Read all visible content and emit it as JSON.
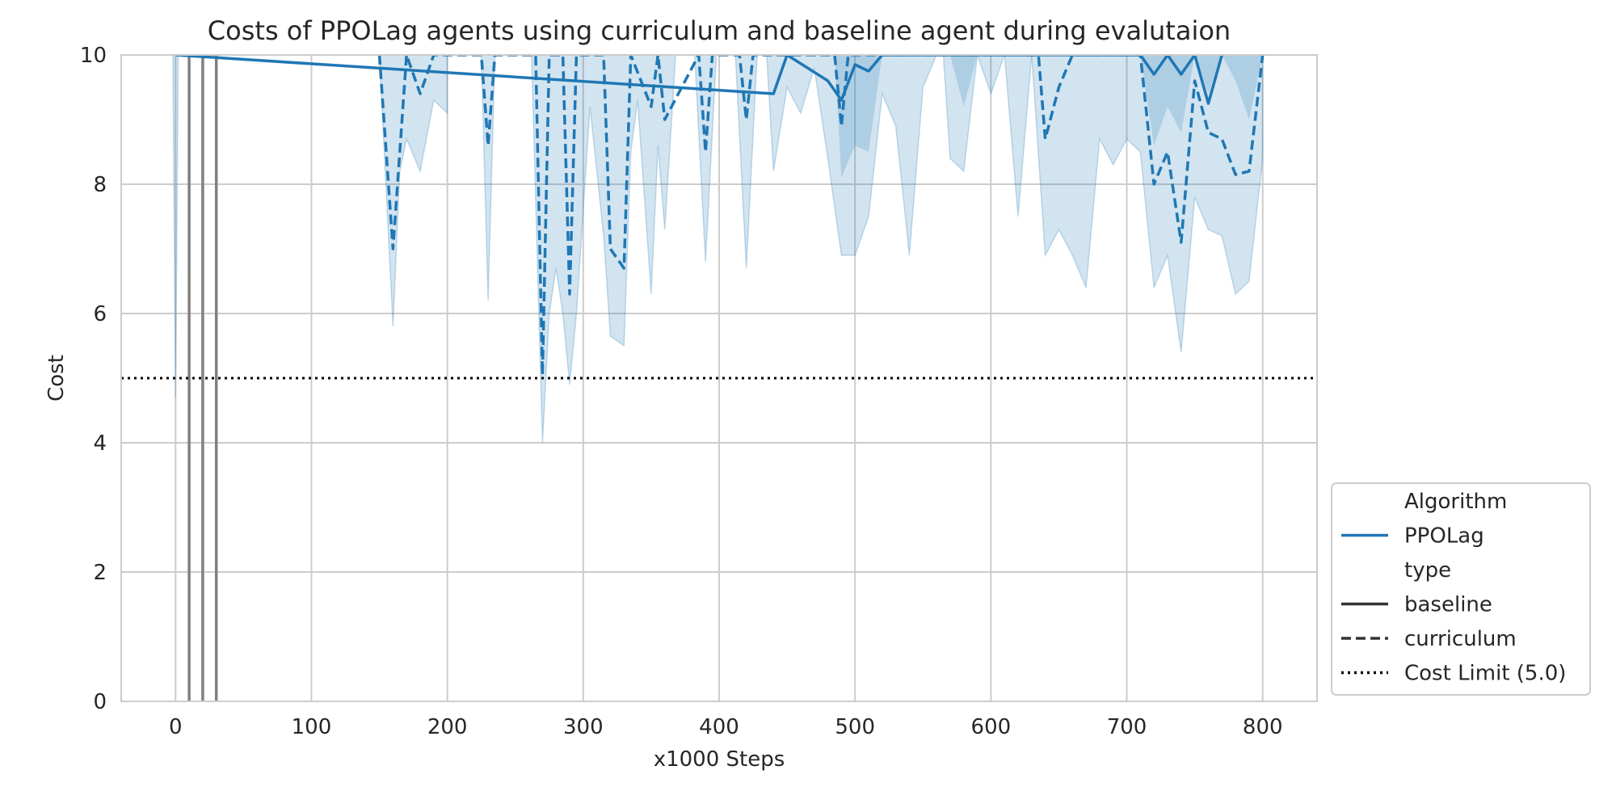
{
  "chart_data": {
    "type": "line",
    "title": "Costs of PPOLag agents using curriculum and baseline agent during evalutaion",
    "xlabel": "x1000 Steps",
    "ylabel": "Cost",
    "xlim": [
      -40,
      840
    ],
    "ylim": [
      0,
      10
    ],
    "xticks": [
      0,
      100,
      200,
      300,
      400,
      500,
      600,
      700,
      800
    ],
    "yticks": [
      0,
      2,
      4,
      6,
      8,
      10
    ],
    "grid": true,
    "colors": {
      "series": "#1f77b4",
      "band": "#1f77b4",
      "limit": "#000000",
      "vlines": "#808080"
    },
    "cost_limit": 5.0,
    "vertical_lines_x": [
      10,
      20,
      30
    ],
    "legend": {
      "placement": "outside-right-bottom",
      "entries": [
        {
          "label": "Algorithm",
          "style": "header"
        },
        {
          "label": "PPOLag",
          "style": "solid",
          "color": "#1f77b4"
        },
        {
          "label": "type",
          "style": "header"
        },
        {
          "label": "baseline",
          "style": "solid",
          "color": "#333333"
        },
        {
          "label": "curriculum",
          "style": "dashed",
          "color": "#333333"
        },
        {
          "label": "Cost Limit (5.0)",
          "style": "dotted",
          "color": "#000000"
        }
      ]
    },
    "series": [
      {
        "name": "baseline",
        "linestyle": "solid",
        "x": [
          0,
          440,
          450,
          480,
          490,
          500,
          510,
          520,
          710,
          720,
          730,
          740,
          750,
          760,
          770
        ],
        "y": [
          10,
          9.4,
          10,
          9.6,
          9.3,
          9.85,
          9.75,
          10,
          10,
          9.7,
          10,
          9.7,
          10,
          9.25,
          10
        ]
      },
      {
        "name": "curriculum",
        "linestyle": "dashed",
        "x": [
          150,
          160,
          170,
          180,
          190,
          225,
          230,
          235,
          265,
          270,
          275,
          280,
          285,
          290,
          295,
          315,
          320,
          330,
          335,
          350,
          355,
          360,
          385,
          390,
          395,
          415,
          420,
          425,
          485,
          490,
          495,
          635,
          640,
          650,
          660,
          710,
          720,
          730,
          740,
          750,
          760,
          770,
          780,
          790,
          800
        ],
        "y": [
          10,
          7.0,
          10,
          9.4,
          10,
          10,
          8.6,
          10,
          10,
          5.05,
          10,
          10,
          10,
          6.3,
          10,
          10,
          7.0,
          6.7,
          10,
          9.2,
          10,
          9.0,
          10,
          8.5,
          10,
          10,
          9.0,
          10,
          10,
          8.9,
          10,
          10,
          8.7,
          9.5,
          10,
          10,
          8.0,
          8.5,
          7.1,
          9.6,
          8.8,
          8.7,
          8.15,
          8.2,
          10
        ]
      }
    ],
    "confidence_bands": [
      {
        "x": [
          -2,
          0,
          2
        ],
        "lower": [
          10,
          4.7,
          10
        ],
        "upper": [
          10,
          10,
          10
        ]
      },
      {
        "x": [
          150,
          160,
          165,
          170,
          180,
          190,
          200
        ],
        "lower": [
          10,
          5.8,
          8.2,
          8.7,
          8.2,
          9.3,
          9.1
        ],
        "upper": [
          10,
          10,
          10,
          10,
          10,
          10,
          10
        ]
      },
      {
        "x": [
          225,
          230,
          235
        ],
        "lower": [
          10,
          6.2,
          10
        ],
        "upper": [
          10,
          10,
          10
        ]
      },
      {
        "x": [
          262,
          270,
          275,
          280,
          285,
          290,
          295,
          305,
          315,
          320,
          330,
          335,
          340,
          350,
          355,
          360,
          368
        ],
        "lower": [
          10,
          4.0,
          6.0,
          6.7,
          6.0,
          4.9,
          6.0,
          9.2,
          7.2,
          5.65,
          5.5,
          8.5,
          9.3,
          6.3,
          8.6,
          7.3,
          10
        ],
        "upper": [
          10,
          10,
          10,
          10,
          10,
          10,
          10,
          10,
          10,
          10,
          10,
          10,
          10,
          10,
          10,
          10,
          10
        ]
      },
      {
        "x": [
          382,
          390,
          398
        ],
        "lower": [
          10,
          6.8,
          10
        ],
        "upper": [
          10,
          10,
          10
        ]
      },
      {
        "x": [
          412,
          420,
          428
        ],
        "lower": [
          10,
          6.7,
          10
        ],
        "upper": [
          10,
          10,
          10
        ]
      },
      {
        "x": [
          435,
          440,
          450,
          460,
          470,
          480,
          490,
          500,
          510,
          520,
          530,
          540,
          550,
          560
        ],
        "lower": [
          10,
          8.2,
          9.5,
          9.1,
          9.8,
          8.4,
          6.9,
          6.9,
          7.5,
          9.4,
          8.9,
          6.9,
          9.5,
          10
        ],
        "upper": [
          10,
          10,
          10,
          10,
          10,
          10,
          10,
          10,
          10,
          10,
          10,
          10,
          10,
          10
        ]
      },
      {
        "x": [
          565,
          570,
          580,
          590,
          600,
          610,
          620,
          630
        ],
        "lower": [
          10,
          8.4,
          8.2,
          10,
          9.4,
          10,
          7.5,
          10
        ],
        "upper": [
          10,
          10,
          10,
          10,
          10,
          10,
          10,
          10
        ]
      },
      {
        "x": [
          630,
          640,
          650,
          660,
          670,
          680,
          690,
          700,
          710,
          720,
          730,
          740,
          750,
          760,
          770,
          780,
          790,
          800
        ],
        "lower": [
          10,
          6.9,
          7.3,
          6.9,
          6.4,
          8.7,
          8.3,
          8.7,
          8.5,
          6.4,
          6.9,
          5.4,
          7.8,
          7.3,
          7.2,
          6.3,
          6.5,
          8.4
        ],
        "upper": [
          10,
          10,
          10,
          10,
          10,
          10,
          10,
          10,
          10,
          10,
          10,
          10,
          10,
          10,
          10,
          10,
          10,
          10
        ]
      }
    ],
    "dark_bands": [
      {
        "x": [
          485,
          490,
          500,
          510,
          520
        ],
        "lower": [
          10,
          8.1,
          8.6,
          8.5,
          10
        ],
        "upper": [
          10,
          10,
          10,
          10,
          10
        ]
      },
      {
        "x": [
          570,
          580,
          590
        ],
        "lower": [
          10,
          9.2,
          10
        ],
        "upper": [
          10,
          10,
          10
        ]
      },
      {
        "x": [
          710,
          720,
          730,
          740,
          750,
          760,
          770,
          780,
          790,
          800
        ],
        "lower": [
          10,
          8.6,
          9.2,
          8.8,
          10,
          9.4,
          10,
          9.6,
          9.0,
          10
        ],
        "upper": [
          10,
          10,
          10,
          10,
          10,
          10,
          10,
          10,
          10,
          10
        ]
      }
    ]
  }
}
